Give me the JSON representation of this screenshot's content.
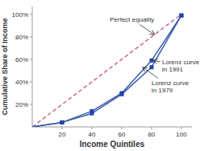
{
  "chart_data": {
    "type": "line",
    "x": [
      0,
      20,
      40,
      60,
      80,
      100
    ],
    "series": [
      {
        "type": "line",
        "color": "#cc6699",
        "line_style": "dashed",
        "values": [
          0,
          20,
          40,
          60,
          80,
          100
        ]
      },
      {
        "type": "line",
        "color": "#3a5bab",
        "line_style": "solid",
        "values": [
          0,
          4,
          14,
          30,
          59,
          99
        ]
      },
      {
        "type": "scatter",
        "color": "#2244aa",
        "marker": "square",
        "values": [
          null,
          4,
          14,
          30,
          59,
          99
        ]
      },
      {
        "type": "line",
        "color": "#3a5bab",
        "line_style": "solid",
        "values": [
          0,
          4,
          12,
          29,
          53,
          99
        ]
      },
      {
        "type": "scatter",
        "color": "#2244aa",
        "marker": "square",
        "values": [
          null,
          4,
          12,
          29,
          53,
          99
        ]
      }
    ],
    "xlabel": "Income Quintiles",
    "ylabel": "Cumulative Share of Income",
    "xlim": [
      0,
      107
    ],
    "ylim": [
      0,
      107
    ],
    "xticks": [
      20,
      40,
      60,
      80,
      100
    ],
    "yticks": [
      {
        "value": 20,
        "label": "20%"
      },
      {
        "value": 40,
        "label": "40%"
      },
      {
        "value": 60,
        "label": "60%"
      },
      {
        "value": 80,
        "label": "80%"
      },
      {
        "value": 100,
        "label": "100%"
      }
    ],
    "grid": false,
    "annotations": [
      {
        "text": "Perfect equality",
        "x": 82,
        "y": 82,
        "text_x": 52,
        "text_y": 95
      },
      {
        "text": "Lorenz curve\nin 1991",
        "x": 81,
        "y": 59,
        "text_x": 87,
        "text_y": 54
      },
      {
        "text": "Lorenz curve\nin 1979",
        "x": 74,
        "y": 53,
        "text_x": 80,
        "text_y": 35
      }
    ]
  }
}
